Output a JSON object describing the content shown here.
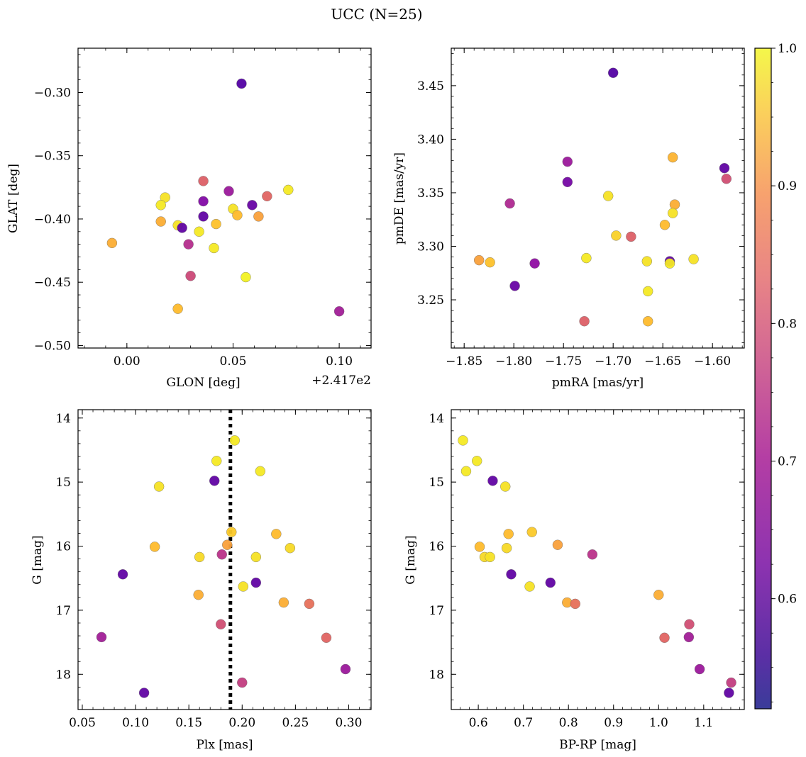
{
  "figure": {
    "title": "UCC (N=25)",
    "colorbar": {
      "cmap": "plasma",
      "range": [
        0.52,
        1.0
      ],
      "ticks": [
        0.6,
        0.7,
        0.8,
        0.9,
        1.0
      ],
      "tick_labels": [
        "0.6",
        "0.7",
        "0.8",
        "0.9",
        "1.0"
      ]
    }
  },
  "chart_data": [
    {
      "type": "scatter",
      "id": "glon-glat",
      "xlabel": "GLON [deg]",
      "ylabel": "GLAT [deg]",
      "offset_label": "+2.417e2",
      "xlim": [
        -0.023,
        0.115
      ],
      "ylim": [
        -0.502,
        -0.265
      ],
      "xticks": [
        0.0,
        0.05,
        0.1
      ],
      "xtick_labels": [
        "0.00",
        "0.05",
        "0.10"
      ],
      "yticks": [
        -0.5,
        -0.45,
        -0.4,
        -0.35,
        -0.3
      ],
      "ytick_labels": [
        "−0.50",
        "−0.45",
        "−0.40",
        "−0.35",
        "−0.30"
      ],
      "points": [
        {
          "x": 0.054,
          "y": -0.293,
          "c": 0.53
        },
        {
          "x": 0.036,
          "y": -0.37,
          "c": 0.77
        },
        {
          "x": 0.076,
          "y": -0.377,
          "c": 0.98
        },
        {
          "x": 0.048,
          "y": -0.378,
          "c": 0.64
        },
        {
          "x": 0.066,
          "y": -0.382,
          "c": 0.78
        },
        {
          "x": 0.018,
          "y": -0.383,
          "c": 0.97
        },
        {
          "x": 0.036,
          "y": -0.386,
          "c": 0.6
        },
        {
          "x": 0.016,
          "y": -0.389,
          "c": 0.98
        },
        {
          "x": 0.059,
          "y": -0.389,
          "c": 0.56
        },
        {
          "x": 0.05,
          "y": -0.392,
          "c": 0.97
        },
        {
          "x": 0.052,
          "y": -0.397,
          "c": 0.92
        },
        {
          "x": 0.036,
          "y": -0.398,
          "c": 0.55
        },
        {
          "x": 0.062,
          "y": -0.398,
          "c": 0.88
        },
        {
          "x": 0.016,
          "y": -0.402,
          "c": 0.9
        },
        {
          "x": 0.042,
          "y": -0.404,
          "c": 0.93
        },
        {
          "x": 0.024,
          "y": -0.405,
          "c": 0.97
        },
        {
          "x": 0.026,
          "y": -0.407,
          "c": 0.55
        },
        {
          "x": 0.034,
          "y": -0.41,
          "c": 0.98
        },
        {
          "x": -0.007,
          "y": -0.419,
          "c": 0.9
        },
        {
          "x": 0.029,
          "y": -0.42,
          "c": 0.68
        },
        {
          "x": 0.041,
          "y": -0.423,
          "c": 0.98
        },
        {
          "x": 0.03,
          "y": -0.445,
          "c": 0.73
        },
        {
          "x": 0.056,
          "y": -0.446,
          "c": 0.99
        },
        {
          "x": 0.024,
          "y": -0.471,
          "c": 0.92
        },
        {
          "x": 0.1,
          "y": -0.473,
          "c": 0.65
        }
      ]
    },
    {
      "type": "scatter",
      "id": "pmra-pmde",
      "xlabel": "pmRA [mas/yr]",
      "ylabel": "pmDE [mas/yr]",
      "xlim": [
        -1.863,
        -1.568
      ],
      "ylim": [
        3.205,
        3.485
      ],
      "xticks": [
        -1.85,
        -1.8,
        -1.75,
        -1.7,
        -1.65,
        -1.6
      ],
      "xtick_labels": [
        "−1.85",
        "−1.80",
        "−1.75",
        "−1.70",
        "−1.65",
        "−1.60"
      ],
      "yticks": [
        3.25,
        3.3,
        3.35,
        3.4,
        3.45
      ],
      "ytick_labels": [
        "3.25",
        "3.30",
        "3.35",
        "3.40",
        "3.45"
      ],
      "points": [
        {
          "x": -1.7,
          "y": 3.462,
          "c": 0.53
        },
        {
          "x": -1.64,
          "y": 3.383,
          "c": 0.91
        },
        {
          "x": -1.746,
          "y": 3.379,
          "c": 0.64
        },
        {
          "x": -1.588,
          "y": 3.373,
          "c": 0.55
        },
        {
          "x": -1.586,
          "y": 3.363,
          "c": 0.74
        },
        {
          "x": -1.746,
          "y": 3.36,
          "c": 0.58
        },
        {
          "x": -1.705,
          "y": 3.347,
          "c": 0.97
        },
        {
          "x": -1.804,
          "y": 3.34,
          "c": 0.67
        },
        {
          "x": -1.638,
          "y": 3.339,
          "c": 0.9
        },
        {
          "x": -1.64,
          "y": 3.331,
          "c": 0.97
        },
        {
          "x": -1.648,
          "y": 3.32,
          "c": 0.92
        },
        {
          "x": -1.697,
          "y": 3.31,
          "c": 0.95
        },
        {
          "x": -1.682,
          "y": 3.309,
          "c": 0.77
        },
        {
          "x": -1.727,
          "y": 3.289,
          "c": 0.98
        },
        {
          "x": -1.619,
          "y": 3.288,
          "c": 0.97
        },
        {
          "x": -1.835,
          "y": 3.287,
          "c": 0.88
        },
        {
          "x": -1.643,
          "y": 3.286,
          "c": 0.55
        },
        {
          "x": -1.666,
          "y": 3.286,
          "c": 0.97
        },
        {
          "x": -1.824,
          "y": 3.285,
          "c": 0.93
        },
        {
          "x": -1.779,
          "y": 3.284,
          "c": 0.62
        },
        {
          "x": -1.643,
          "y": 3.284,
          "c": 0.98
        },
        {
          "x": -1.799,
          "y": 3.263,
          "c": 0.56
        },
        {
          "x": -1.665,
          "y": 3.258,
          "c": 0.98
        },
        {
          "x": -1.729,
          "y": 3.23,
          "c": 0.77
        },
        {
          "x": -1.665,
          "y": 3.23,
          "c": 0.92
        }
      ]
    },
    {
      "type": "scatter",
      "id": "plx-g",
      "xlabel": "Plx [mas]",
      "ylabel": "G [mag]",
      "xlim": [
        0.046,
        0.321
      ],
      "ylim": [
        18.55,
        13.87
      ],
      "y_inverted": true,
      "vline": 0.189,
      "xticks": [
        0.05,
        0.1,
        0.15,
        0.2,
        0.25,
        0.3
      ],
      "xtick_labels": [
        "0.05",
        "0.10",
        "0.15",
        "0.20",
        "0.25",
        "0.30"
      ],
      "yticks": [
        14,
        15,
        16,
        17,
        18
      ],
      "ytick_labels": [
        "14",
        "15",
        "16",
        "17",
        "18"
      ],
      "points": [
        {
          "x": 0.193,
          "y": 14.35,
          "c": 0.98
        },
        {
          "x": 0.176,
          "y": 14.67,
          "c": 0.98
        },
        {
          "x": 0.217,
          "y": 14.83,
          "c": 0.98
        },
        {
          "x": 0.174,
          "y": 14.98,
          "c": 0.55
        },
        {
          "x": 0.122,
          "y": 15.07,
          "c": 0.97
        },
        {
          "x": 0.19,
          "y": 15.78,
          "c": 0.94
        },
        {
          "x": 0.232,
          "y": 15.81,
          "c": 0.92
        },
        {
          "x": 0.186,
          "y": 15.98,
          "c": 0.88
        },
        {
          "x": 0.118,
          "y": 16.01,
          "c": 0.92
        },
        {
          "x": 0.245,
          "y": 16.03,
          "c": 0.96
        },
        {
          "x": 0.181,
          "y": 16.13,
          "c": 0.69
        },
        {
          "x": 0.16,
          "y": 16.17,
          "c": 0.96
        },
        {
          "x": 0.213,
          "y": 16.17,
          "c": 0.97
        },
        {
          "x": 0.088,
          "y": 16.44,
          "c": 0.55
        },
        {
          "x": 0.213,
          "y": 16.57,
          "c": 0.55
        },
        {
          "x": 0.201,
          "y": 16.63,
          "c": 0.97
        },
        {
          "x": 0.159,
          "y": 16.76,
          "c": 0.9
        },
        {
          "x": 0.239,
          "y": 16.88,
          "c": 0.9
        },
        {
          "x": 0.263,
          "y": 16.9,
          "c": 0.8
        },
        {
          "x": 0.18,
          "y": 17.22,
          "c": 0.74
        },
        {
          "x": 0.068,
          "y": 17.42,
          "c": 0.65
        },
        {
          "x": 0.279,
          "y": 17.43,
          "c": 0.78
        },
        {
          "x": 0.297,
          "y": 17.92,
          "c": 0.64
        },
        {
          "x": 0.2,
          "y": 18.13,
          "c": 0.71
        },
        {
          "x": 0.108,
          "y": 18.29,
          "c": 0.55
        }
      ]
    },
    {
      "type": "scatter",
      "id": "bprp-g",
      "xlabel": "BP-RP [mag]",
      "ylabel": "G [mag]",
      "xlim": [
        0.54,
        1.19
      ],
      "ylim": [
        18.55,
        13.87
      ],
      "y_inverted": true,
      "xticks": [
        0.6,
        0.7,
        0.8,
        0.9,
        1.0,
        1.1
      ],
      "xtick_labels": [
        "0.6",
        "0.7",
        "0.8",
        "0.9",
        "1.0",
        "1.1"
      ],
      "yticks": [
        14,
        15,
        16,
        17,
        18
      ],
      "ytick_labels": [
        "14",
        "15",
        "16",
        "17",
        "18"
      ],
      "points": [
        {
          "x": 0.566,
          "y": 14.35,
          "c": 0.98
        },
        {
          "x": 0.597,
          "y": 14.67,
          "c": 0.98
        },
        {
          "x": 0.573,
          "y": 14.83,
          "c": 0.98
        },
        {
          "x": 0.632,
          "y": 14.98,
          "c": 0.55
        },
        {
          "x": 0.66,
          "y": 15.07,
          "c": 0.97
        },
        {
          "x": 0.719,
          "y": 15.78,
          "c": 0.94
        },
        {
          "x": 0.667,
          "y": 15.81,
          "c": 0.92
        },
        {
          "x": 0.776,
          "y": 15.98,
          "c": 0.88
        },
        {
          "x": 0.603,
          "y": 16.01,
          "c": 0.92
        },
        {
          "x": 0.663,
          "y": 16.03,
          "c": 0.96
        },
        {
          "x": 0.853,
          "y": 16.13,
          "c": 0.69
        },
        {
          "x": 0.614,
          "y": 16.17,
          "c": 0.96
        },
        {
          "x": 0.626,
          "y": 16.17,
          "c": 0.97
        },
        {
          "x": 0.673,
          "y": 16.44,
          "c": 0.55
        },
        {
          "x": 0.76,
          "y": 16.57,
          "c": 0.55
        },
        {
          "x": 0.714,
          "y": 16.63,
          "c": 0.97
        },
        {
          "x": 1.0,
          "y": 16.76,
          "c": 0.9
        },
        {
          "x": 0.797,
          "y": 16.88,
          "c": 0.9
        },
        {
          "x": 0.815,
          "y": 16.9,
          "c": 0.8
        },
        {
          "x": 1.068,
          "y": 17.22,
          "c": 0.74
        },
        {
          "x": 1.067,
          "y": 17.42,
          "c": 0.65
        },
        {
          "x": 1.013,
          "y": 17.43,
          "c": 0.78
        },
        {
          "x": 1.091,
          "y": 17.92,
          "c": 0.64
        },
        {
          "x": 1.161,
          "y": 18.13,
          "c": 0.71
        },
        {
          "x": 1.156,
          "y": 18.29,
          "c": 0.55
        }
      ]
    }
  ]
}
